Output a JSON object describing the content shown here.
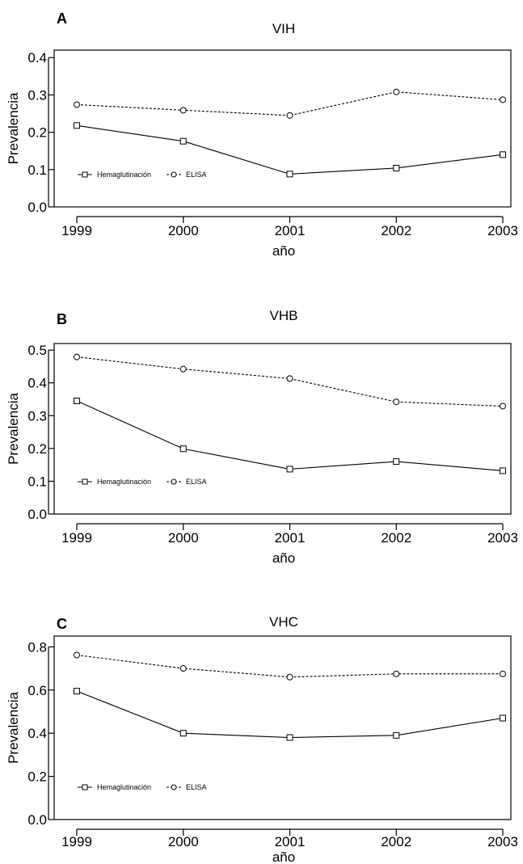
{
  "chart_data": [
    {
      "type": "line",
      "panel_label": "A",
      "title": "VIH",
      "xlabel": "año",
      "ylabel": "Prevalencia",
      "categories": [
        "1999",
        "2000",
        "2001",
        "2002",
        "2003"
      ],
      "ylim": [
        0,
        0.42
      ],
      "yticks": [
        "0.0",
        "0.1",
        "0.2",
        "0.3",
        "0.4"
      ],
      "series": [
        {
          "name": "Hemaglutinación",
          "marker": "square",
          "line": "solid",
          "values": [
            0.218,
            0.176,
            0.088,
            0.104,
            0.14
          ]
        },
        {
          "name": "ELISA",
          "marker": "circle",
          "line": "dashed",
          "values": [
            0.274,
            0.259,
            0.245,
            0.308,
            0.287
          ]
        }
      ],
      "legend": "bottom-left",
      "grid": false
    },
    {
      "type": "line",
      "panel_label": "B",
      "title": "VHB",
      "xlabel": "año",
      "ylabel": "Prevalencia",
      "categories": [
        "1999",
        "2000",
        "2001",
        "2002",
        "2003"
      ],
      "ylim": [
        0,
        0.52
      ],
      "yticks": [
        "0.0",
        "0.1",
        "0.2",
        "0.3",
        "0.4",
        "0.5"
      ],
      "series": [
        {
          "name": "Hemaglutinación",
          "marker": "square",
          "line": "solid",
          "values": [
            0.345,
            0.199,
            0.137,
            0.16,
            0.132
          ]
        },
        {
          "name": "ELISA",
          "marker": "circle",
          "line": "dashed",
          "values": [
            0.479,
            0.442,
            0.413,
            0.342,
            0.329
          ]
        }
      ],
      "legend": "bottom-left",
      "grid": false
    },
    {
      "type": "line",
      "panel_label": "C",
      "title": "VHC",
      "xlabel": "año",
      "ylabel": "Prevalencia",
      "categories": [
        "1999",
        "2000",
        "2001",
        "2002",
        "2003"
      ],
      "ylim": [
        0,
        0.85
      ],
      "yticks": [
        "0.0",
        "0.2",
        "0.4",
        "0.6",
        "0.8"
      ],
      "series": [
        {
          "name": "Hemaglutinación",
          "marker": "square",
          "line": "solid",
          "values": [
            0.595,
            0.4,
            0.38,
            0.39,
            0.47
          ]
        },
        {
          "name": "ELISA",
          "marker": "circle",
          "line": "dashed",
          "values": [
            0.762,
            0.7,
            0.66,
            0.675,
            0.675
          ]
        }
      ],
      "legend": "bottom-left",
      "grid": false
    }
  ]
}
